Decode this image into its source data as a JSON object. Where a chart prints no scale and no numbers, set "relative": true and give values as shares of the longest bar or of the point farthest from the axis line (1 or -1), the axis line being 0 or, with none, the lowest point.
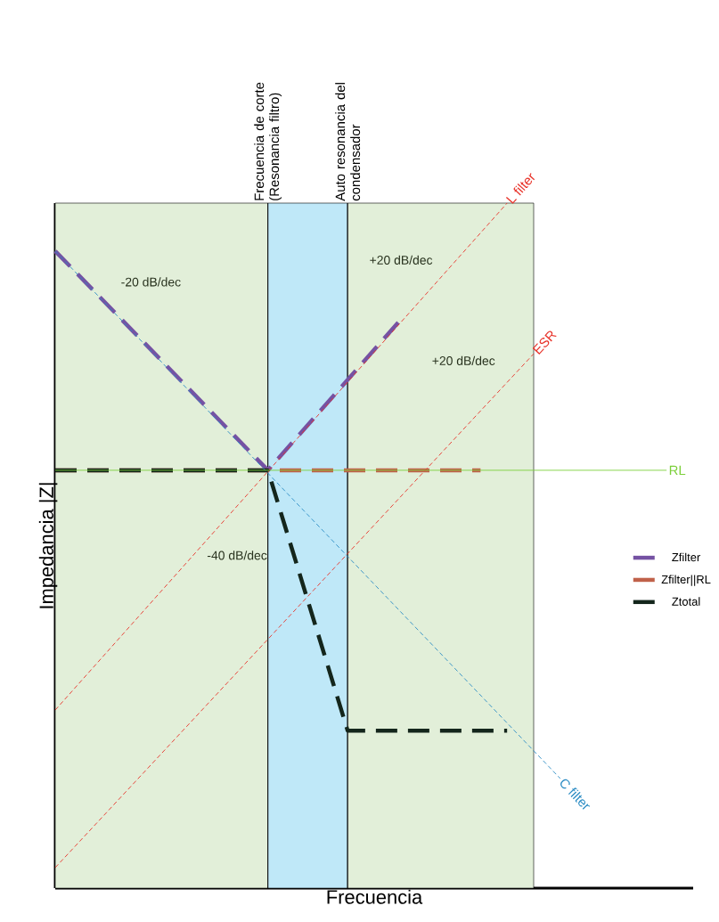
{
  "chart_data": {
    "type": "line",
    "relative": true,
    "xlabel": "Frecuencia",
    "ylabel": "Impedancia |Z|",
    "categories": [
      null,
      null,
      null,
      null,
      null,
      null,
      null,
      null,
      null,
      null,
      null,
      null,
      null,
      null,
      null,
      null,
      null,
      null,
      null,
      null,
      null,
      null,
      null,
      null,
      null
    ],
    "legend": "right",
    "marker": "none",
    "line_style": "dashed",
    "series": [
      {
        "name": "Zfilter",
        "color": "#7552a3",
        "values": [
          0.93,
          null,
          null,
          null,
          null,
          null,
          null,
          null,
          0.61,
          null,
          null,
          null,
          null,
          0.83,
          null,
          null,
          null,
          null,
          null,
          null,
          null,
          null,
          null,
          null,
          null
        ]
      },
      {
        "name": "Zfilter||RL",
        "color": "#c0614a",
        "values": [
          0.61,
          null,
          null,
          null,
          null,
          null,
          null,
          null,
          null,
          null,
          null,
          null,
          null,
          null,
          null,
          null,
          0.61,
          null,
          null,
          null,
          null,
          null,
          null,
          null,
          null
        ]
      },
      {
        "name": "Ztotal",
        "color": "#14261c",
        "values": [
          0.61,
          null,
          null,
          null,
          null,
          null,
          null,
          null,
          0.61,
          null,
          null,
          0.23,
          null,
          null,
          null,
          null,
          null,
          0.23,
          null,
          null,
          null,
          null,
          null,
          null,
          null
        ]
      },
      {
        "name": "C filter",
        "color": "#2b8cc4",
        "values": [
          0.93,
          null,
          null,
          null,
          null,
          null,
          null,
          null,
          null,
          null,
          null,
          null,
          null,
          null,
          null,
          null,
          null,
          null,
          null,
          0.16,
          null,
          null,
          null,
          null,
          null
        ]
      },
      {
        "name": "L filter",
        "color": "#e8332a",
        "values": [
          0.26,
          null,
          null,
          null,
          null,
          null,
          null,
          null,
          null,
          null,
          null,
          null,
          null,
          null,
          null,
          null,
          null,
          1.0,
          null,
          null,
          null,
          null,
          null,
          null,
          null
        ]
      },
      {
        "name": "ESR",
        "color": "#e8332a",
        "values": [
          0.03,
          null,
          null,
          null,
          null,
          null,
          null,
          null,
          null,
          null,
          null,
          null,
          null,
          null,
          null,
          null,
          null,
          null,
          0.78,
          null,
          null,
          null,
          null,
          null,
          null
        ]
      },
      {
        "name": "RL",
        "color": "#7ccf3a",
        "line_style": "solid",
        "values": [
          0.61,
          null,
          null,
          null,
          null,
          null,
          null,
          null,
          null,
          null,
          null,
          null,
          null,
          null,
          null,
          null,
          null,
          null,
          null,
          null,
          null,
          null,
          null,
          0.61,
          null
        ]
      }
    ],
    "annotations": [
      "Frecuencia de corte (Resonancia filtro)",
      "Auto resonancia del condensador",
      "-20 dB/dec",
      "+20 dB/dec",
      "+20 dB/dec",
      "-40 dB/dec"
    ]
  }
}
